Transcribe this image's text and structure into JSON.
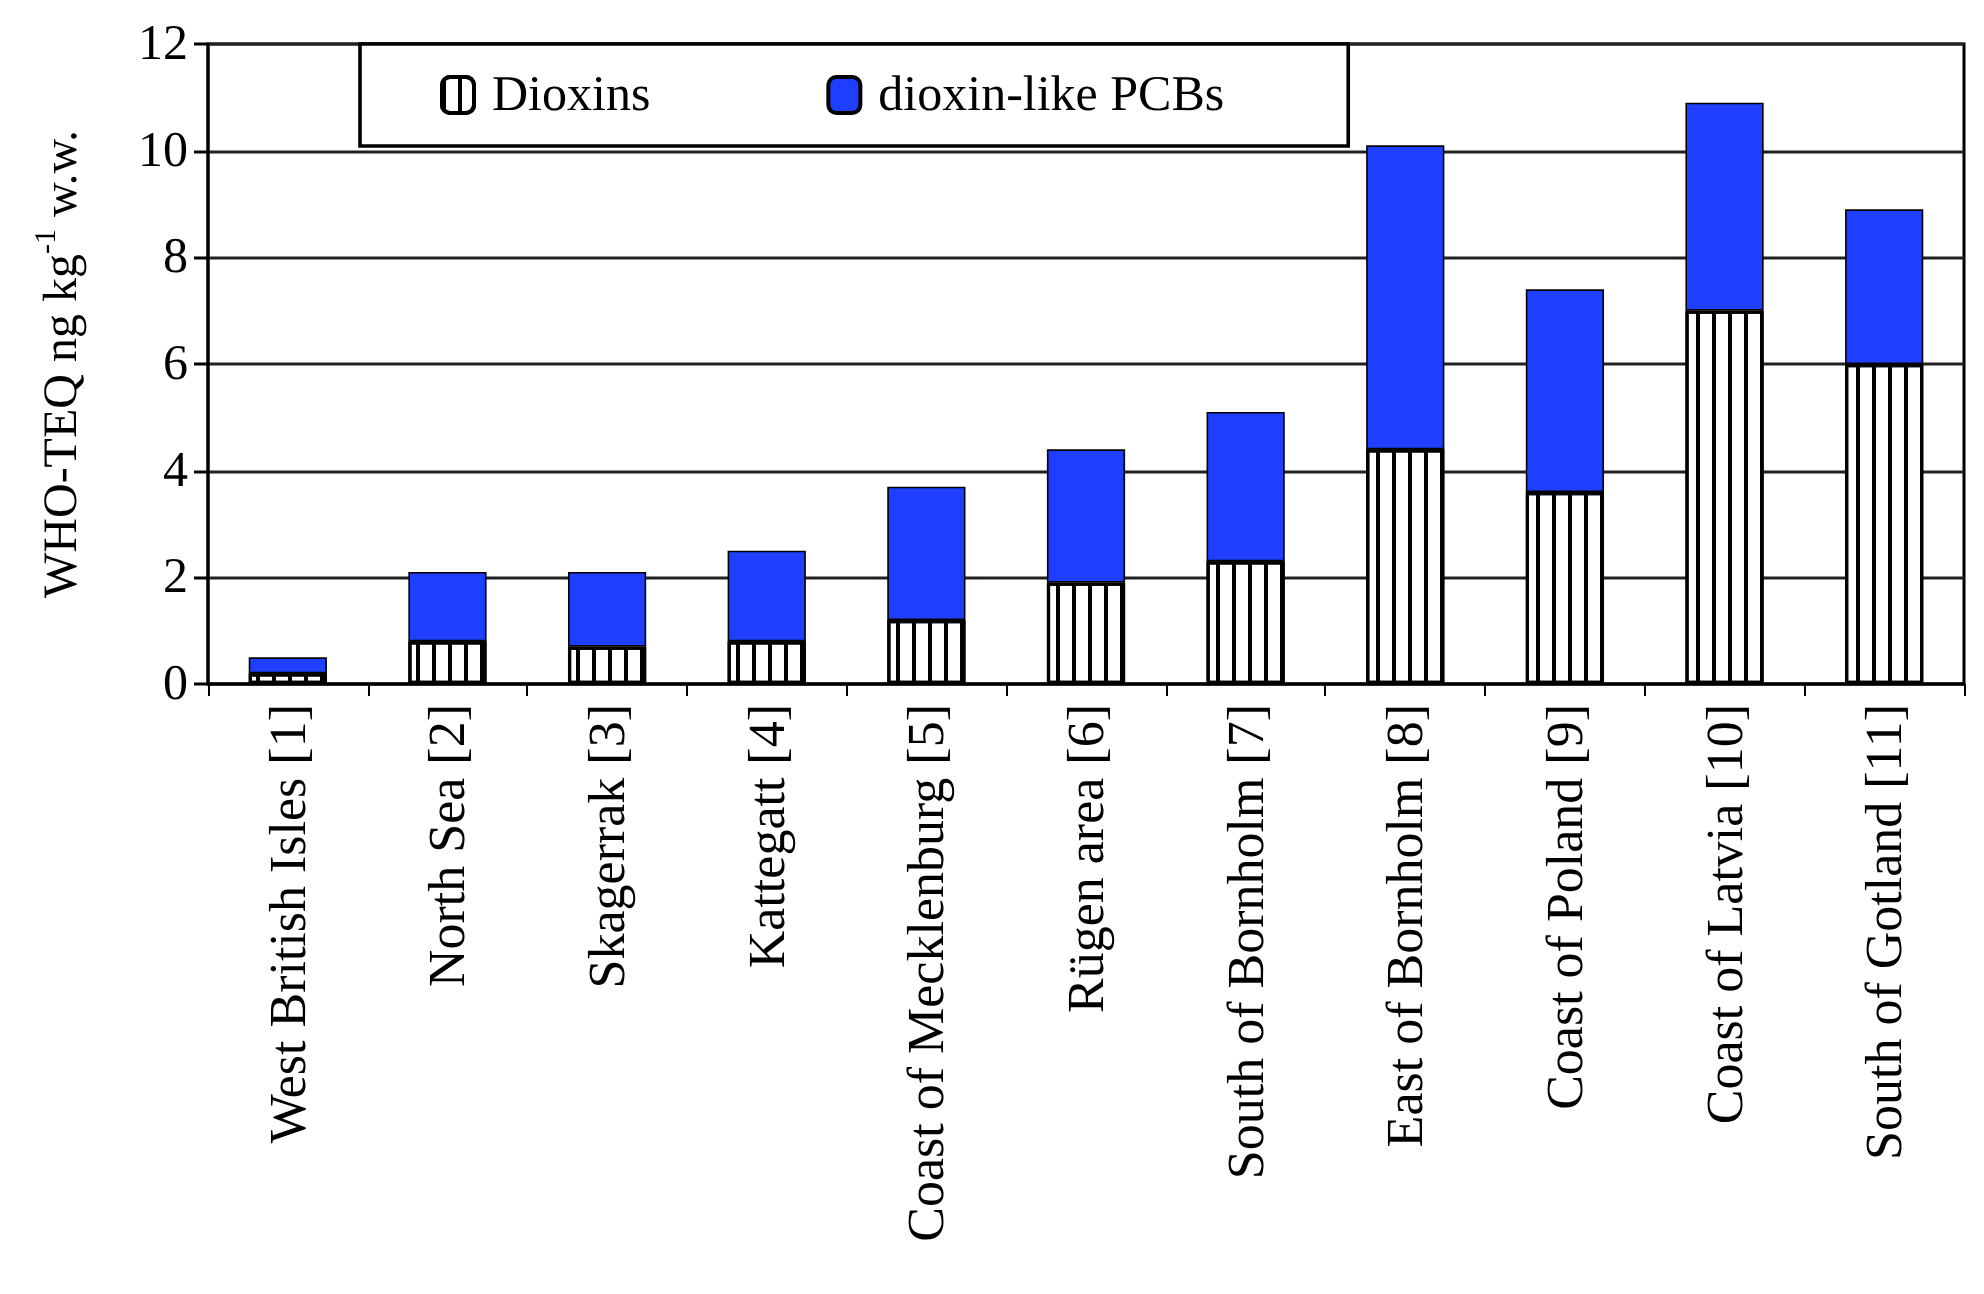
{
  "chart_data": {
    "type": "bar",
    "stacked": true,
    "categories": [
      "West British Isles [1]",
      "North Sea [2]",
      "Skagerrak [3]",
      "Kattegatt [4]",
      "Coast of Mecklenburg [5]",
      "Rügen area [6]",
      "South of Bornholm [7]",
      "East of Bornholm [8]",
      "Coast of Poland [9]",
      "Coast of Latvia [10]",
      "South of Gotland [11]"
    ],
    "series": [
      {
        "name": "Dioxins",
        "color": "#ffffff",
        "values": [
          0.2,
          0.8,
          0.7,
          0.8,
          1.2,
          1.9,
          2.3,
          4.4,
          3.6,
          7.0,
          6.0
        ]
      },
      {
        "name": "dioxin-like PCBs",
        "color": "#1e3fff",
        "values": [
          0.3,
          1.3,
          1.4,
          1.7,
          2.5,
          2.5,
          2.8,
          5.7,
          3.8,
          3.9,
          2.9
        ]
      }
    ],
    "ylabel": "WHO-TEQ ng kg$^{-1}$ w.w.",
    "ylim": [
      0,
      12
    ],
    "yticks": [
      0,
      2,
      4,
      6,
      8,
      10,
      12
    ],
    "grid": "y",
    "legend": "top"
  }
}
